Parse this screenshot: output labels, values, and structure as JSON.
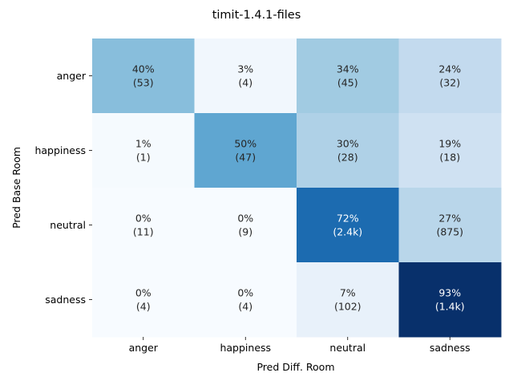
{
  "chart_data": {
    "type": "heatmap",
    "title": "timit-1.4.1-files",
    "xlabel": "Pred Diff. Room",
    "ylabel": "Pred Base Room",
    "x_categories": [
      "anger",
      "happiness",
      "neutral",
      "sadness"
    ],
    "y_categories": [
      "anger",
      "happiness",
      "neutral",
      "sadness"
    ],
    "percent": [
      [
        40,
        3,
        34,
        24
      ],
      [
        1,
        50,
        30,
        19
      ],
      [
        0,
        0,
        72,
        27
      ],
      [
        0,
        0,
        7,
        93
      ]
    ],
    "counts": [
      [
        "53",
        "4",
        "45",
        "32"
      ],
      [
        "1",
        "47",
        "28",
        "18"
      ],
      [
        "11",
        "9",
        "2.4k",
        "875"
      ],
      [
        "4",
        "4",
        "102",
        "1.4k"
      ]
    ],
    "colormap": "Blues",
    "value_range": [
      0,
      93
    ]
  }
}
